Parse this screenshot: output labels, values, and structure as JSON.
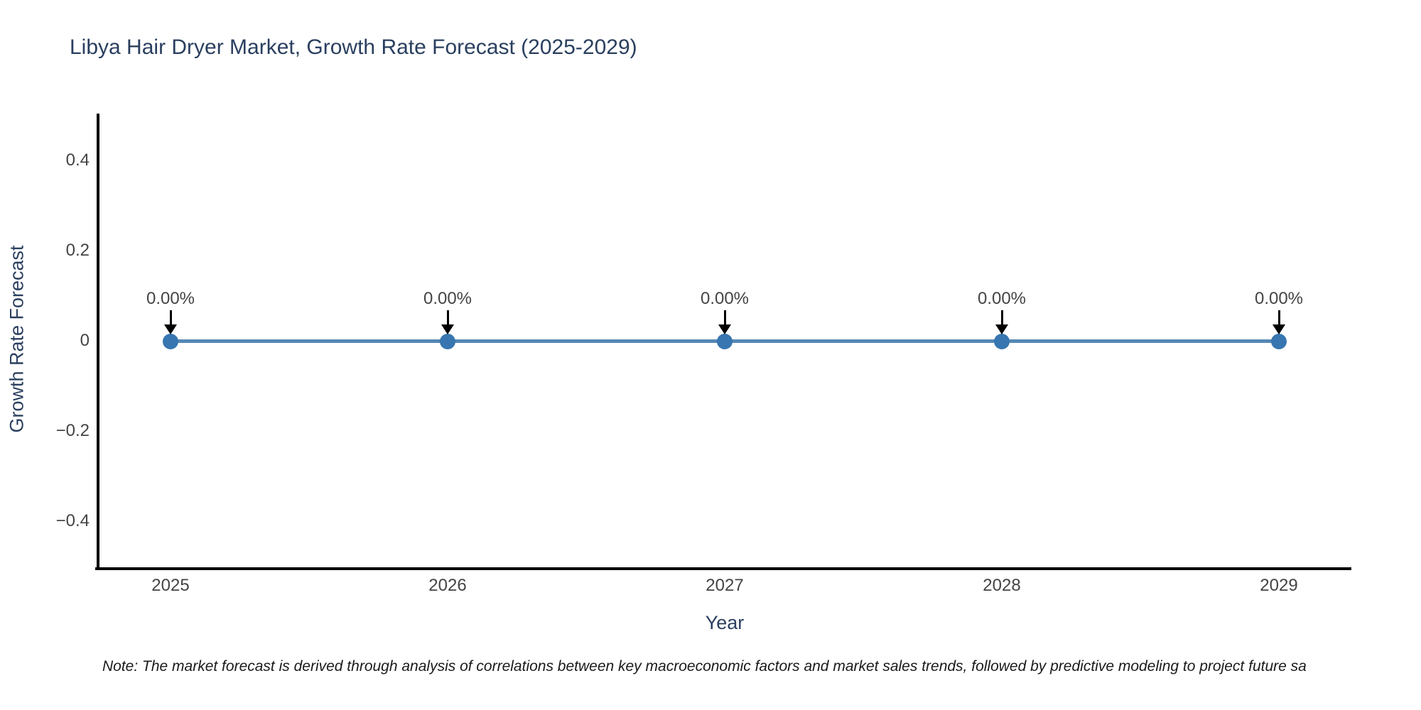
{
  "title": "Libya Hair Dryer Market, Growth Rate Forecast (2025-2029)",
  "note": "Note: The market forecast is derived through analysis of correlations between key macroeconomic factors and market sales trends, followed by predictive modeling to project future sa",
  "colors": {
    "title_text": "#2a3f5f",
    "axis_title_text": "#2a3f5f",
    "tick_text": "#444444",
    "annotation_text": "#444444",
    "axis_line": "#000000",
    "line": "#5588b5",
    "marker": "#3776b0",
    "arrow": "#000000",
    "note_text": "#1a1a1a",
    "background": "#ffffff"
  },
  "chart_data": {
    "type": "line",
    "title": "Libya Hair Dryer Market, Growth Rate Forecast (2025-2029)",
    "xlabel": "Year",
    "ylabel": "Growth Rate Forecast",
    "categories": [
      "2025",
      "2026",
      "2027",
      "2028",
      "2029"
    ],
    "series": [
      {
        "name": "Growth Rate Forecast",
        "values": [
          0,
          0,
          0,
          0,
          0
        ]
      }
    ],
    "point_labels": [
      "0.00%",
      "0.00%",
      "0.00%",
      "0.00%",
      "0.00%"
    ],
    "y_tick_labels": [
      "0.4",
      "0.2",
      "0",
      "−0.2",
      "−0.4"
    ],
    "y_tick_values": [
      0.4,
      0.2,
      0,
      -0.2,
      -0.4
    ],
    "ylim": [
      -0.5,
      0.5
    ],
    "grid": false,
    "legend_position": "none",
    "annotation_note": "Each data point is annotated with its value and a downward arrow"
  }
}
